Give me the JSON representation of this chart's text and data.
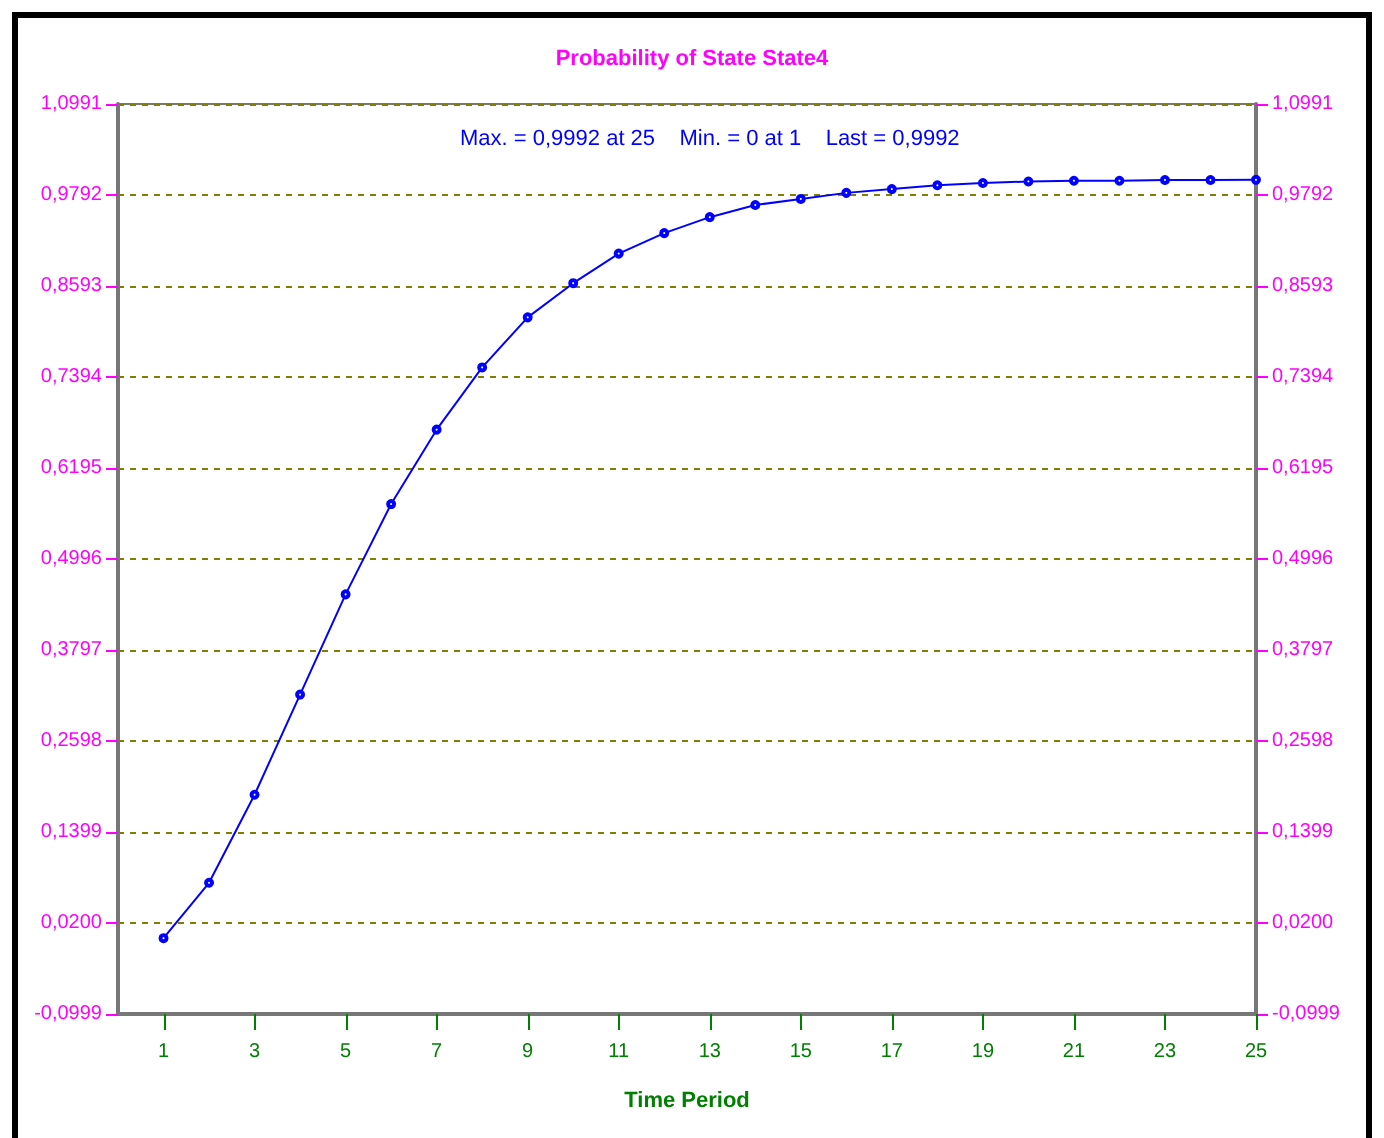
{
  "chart_data": {
    "type": "line",
    "title": "Probability of State State4",
    "xlabel": "Time Period",
    "annotations": [
      "Max. = 0,9992 at 25    Min. = 0 at 1    Last = 0,9992"
    ],
    "x": [
      1,
      2,
      3,
      4,
      5,
      6,
      7,
      8,
      9,
      10,
      11,
      12,
      13,
      14,
      15,
      16,
      17,
      18,
      19,
      20,
      21,
      22,
      23,
      24,
      25
    ],
    "series": [
      {
        "color": "#0000ff",
        "values": [
          0,
          0.073,
          0.189,
          0.321,
          0.453,
          0.572,
          0.67,
          0.752,
          0.818,
          0.863,
          0.902,
          0.929,
          0.95,
          0.966,
          0.974,
          0.982,
          0.987,
          0.992,
          0.995,
          0.997,
          0.998,
          0.998,
          0.999,
          0.999,
          0.9992
        ]
      }
    ],
    "xlim": [
      0,
      25
    ],
    "xticks": [
      1,
      3,
      5,
      7,
      9,
      11,
      13,
      15,
      17,
      19,
      21,
      23,
      25
    ],
    "ylim": [
      -0.0999,
      1.0991
    ],
    "yticks": [
      {
        "value": -0.0999,
        "label": "-0,0999"
      },
      {
        "value": 0.02,
        "label": "0,0200"
      },
      {
        "value": 0.1399,
        "label": "0,1399"
      },
      {
        "value": 0.2598,
        "label": "0,2598"
      },
      {
        "value": 0.3797,
        "label": "0,3797"
      },
      {
        "value": 0.4996,
        "label": "0,4996"
      },
      {
        "value": 0.6195,
        "label": "0,6195"
      },
      {
        "value": 0.7394,
        "label": "0,7394"
      },
      {
        "value": 0.8593,
        "label": "0,8593"
      },
      {
        "value": 0.9792,
        "label": "0,9792"
      },
      {
        "value": 1.0991,
        "label": "1,0991"
      }
    ],
    "y2lim": [
      -0.0999,
      1.0991
    ],
    "y2ticks": [
      {
        "value": -0.0999,
        "label": "-0,0999"
      },
      {
        "value": 0.02,
        "label": "0,0200"
      },
      {
        "value": 0.1399,
        "label": "0,1399"
      },
      {
        "value": 0.2598,
        "label": "0,2598"
      },
      {
        "value": 0.3797,
        "label": "0,3797"
      },
      {
        "value": 0.4996,
        "label": "0,4996"
      },
      {
        "value": 0.6195,
        "label": "0,6195"
      },
      {
        "value": 0.7394,
        "label": "0,7394"
      },
      {
        "value": 0.8593,
        "label": "0,8593"
      },
      {
        "value": 0.9792,
        "label": "0,9792"
      },
      {
        "value": 1.0991,
        "label": "1,0991"
      }
    ],
    "grid": "y",
    "marker": "circle",
    "line_style": "solid"
  }
}
